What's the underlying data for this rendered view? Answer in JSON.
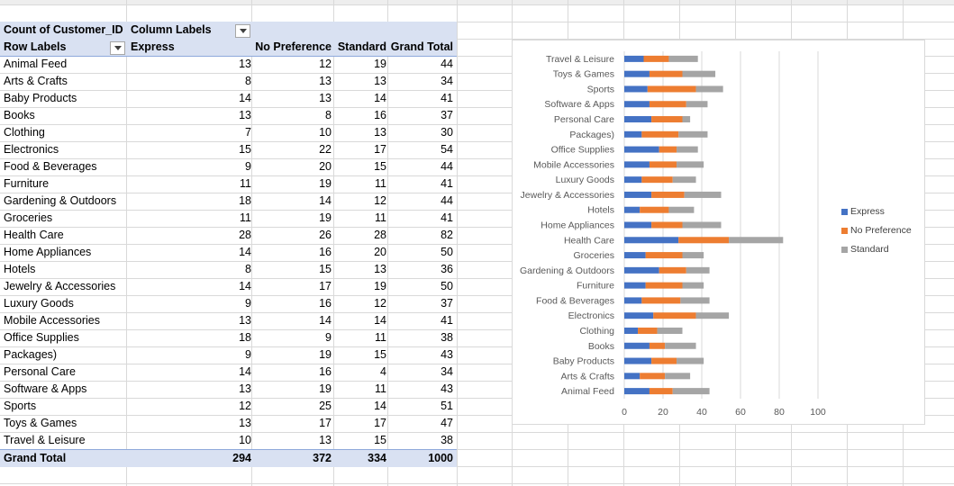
{
  "pivot": {
    "header1": {
      "count_label": "Count of Customer_ID",
      "column_labels": "Column Labels"
    },
    "header2": {
      "row_labels": "Row Labels",
      "express": "Express",
      "no_preference": "No Preference",
      "standard": "Standard",
      "grand_total": "Grand Total"
    },
    "rows": [
      {
        "label": "Animal Feed",
        "express": "13",
        "no_preference": "12",
        "standard": "19",
        "total": "44"
      },
      {
        "label": "Arts & Crafts",
        "express": "8",
        "no_preference": "13",
        "standard": "13",
        "total": "34"
      },
      {
        "label": "Baby Products",
        "express": "14",
        "no_preference": "13",
        "standard": "14",
        "total": "41"
      },
      {
        "label": "Books",
        "express": "13",
        "no_preference": "8",
        "standard": "16",
        "total": "37"
      },
      {
        "label": "Clothing",
        "express": "7",
        "no_preference": "10",
        "standard": "13",
        "total": "30"
      },
      {
        "label": "Electronics",
        "express": "15",
        "no_preference": "22",
        "standard": "17",
        "total": "54"
      },
      {
        "label": "Food & Beverages",
        "express": "9",
        "no_preference": "20",
        "standard": "15",
        "total": "44"
      },
      {
        "label": "Furniture",
        "express": "11",
        "no_preference": "19",
        "standard": "11",
        "total": "41"
      },
      {
        "label": "Gardening & Outdoors",
        "express": "18",
        "no_preference": "14",
        "standard": "12",
        "total": "44"
      },
      {
        "label": "Groceries",
        "express": "11",
        "no_preference": "19",
        "standard": "11",
        "total": "41"
      },
      {
        "label": "Health Care",
        "express": "28",
        "no_preference": "26",
        "standard": "28",
        "total": "82"
      },
      {
        "label": "Home Appliances",
        "express": "14",
        "no_preference": "16",
        "standard": "20",
        "total": "50"
      },
      {
        "label": "Hotels",
        "express": "8",
        "no_preference": "15",
        "standard": "13",
        "total": "36"
      },
      {
        "label": "Jewelry & Accessories",
        "express": "14",
        "no_preference": "17",
        "standard": "19",
        "total": "50"
      },
      {
        "label": "Luxury Goods",
        "express": "9",
        "no_preference": "16",
        "standard": "12",
        "total": "37"
      },
      {
        "label": "Mobile Accessories",
        "express": "13",
        "no_preference": "14",
        "standard": "14",
        "total": "41"
      },
      {
        "label": "Office Supplies",
        "express": "18",
        "no_preference": "9",
        "standard": "11",
        "total": "38"
      },
      {
        "label": "Packages)",
        "express": "9",
        "no_preference": "19",
        "standard": "15",
        "total": "43"
      },
      {
        "label": "Personal Care",
        "express": "14",
        "no_preference": "16",
        "standard": "4",
        "total": "34"
      },
      {
        "label": "Software & Apps",
        "express": "13",
        "no_preference": "19",
        "standard": "11",
        "total": "43"
      },
      {
        "label": "Sports",
        "express": "12",
        "no_preference": "25",
        "standard": "14",
        "total": "51"
      },
      {
        "label": "Toys & Games",
        "express": "13",
        "no_preference": "17",
        "standard": "17",
        "total": "47"
      },
      {
        "label": "Travel & Leisure",
        "express": "10",
        "no_preference": "13",
        "standard": "15",
        "total": "38"
      }
    ],
    "grand_total": {
      "label": "Grand Total",
      "express": "294",
      "no_preference": "372",
      "standard": "334",
      "total": "1000"
    }
  },
  "chart_data": {
    "type": "bar",
    "orientation": "horizontal",
    "stacked": true,
    "categories": [
      "Animal Feed",
      "Arts & Crafts",
      "Baby Products",
      "Books",
      "Clothing",
      "Electronics",
      "Food & Beverages",
      "Furniture",
      "Gardening & Outdoors",
      "Groceries",
      "Health Care",
      "Home Appliances",
      "Hotels",
      "Jewelry & Accessories",
      "Luxury Goods",
      "Mobile Accessories",
      "Office Supplies",
      "Packages)",
      "Personal Care",
      "Software & Apps",
      "Sports",
      "Toys & Games",
      "Travel & Leisure"
    ],
    "series": [
      {
        "name": "Express",
        "color": "#4472c4",
        "values": [
          13,
          8,
          14,
          13,
          7,
          15,
          9,
          11,
          18,
          11,
          28,
          14,
          8,
          14,
          9,
          13,
          18,
          9,
          14,
          13,
          12,
          13,
          10
        ]
      },
      {
        "name": "No Preference",
        "color": "#ed7d31",
        "values": [
          12,
          13,
          13,
          8,
          10,
          22,
          20,
          19,
          14,
          19,
          26,
          16,
          15,
          17,
          16,
          14,
          9,
          19,
          16,
          19,
          25,
          17,
          13
        ]
      },
      {
        "name": "Standard",
        "color": "#a5a5a5",
        "values": [
          19,
          13,
          14,
          16,
          13,
          17,
          15,
          11,
          12,
          11,
          28,
          20,
          13,
          19,
          12,
          14,
          11,
          15,
          4,
          11,
          14,
          17,
          15
        ]
      }
    ],
    "xlim": [
      0,
      100
    ],
    "xticks": [
      "0",
      "20",
      "40",
      "60",
      "80",
      "100"
    ],
    "grid": true,
    "legend": "right"
  }
}
